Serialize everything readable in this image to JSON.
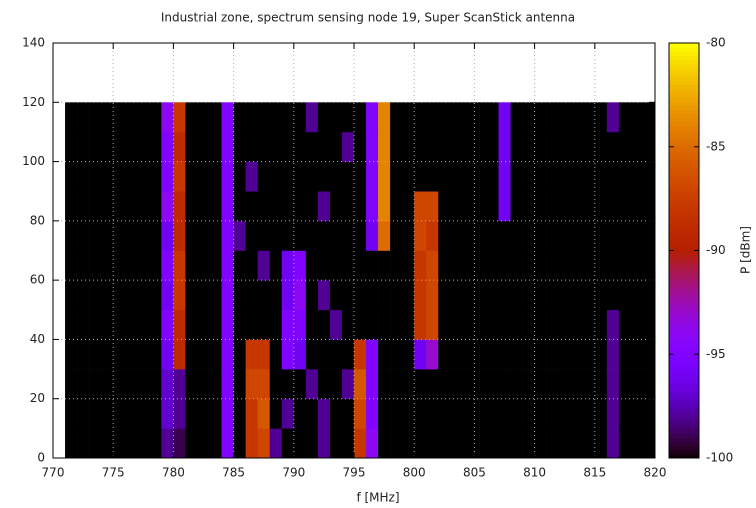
{
  "chart_data": {
    "type": "heatmap",
    "title": "Industrial zone, spectrum sensing node 19, Super ScanStick antenna",
    "xlabel": "f [MHz]",
    "colorbar_label": "P [dBm]",
    "xlim": [
      770,
      820
    ],
    "ylim": [
      0,
      140
    ],
    "cblim": [
      -100,
      -80
    ],
    "xticks": [
      770,
      775,
      780,
      785,
      790,
      795,
      800,
      805,
      810,
      815,
      820
    ],
    "yticks": [
      0,
      20,
      40,
      60,
      80,
      100,
      120,
      140
    ],
    "cbticks": [
      -100,
      -95,
      -90,
      -85,
      -80
    ],
    "grid": true,
    "x_bins": [
      770,
      771,
      772,
      773,
      774,
      775,
      776,
      777,
      778,
      779,
      780,
      781,
      782,
      783,
      784,
      785,
      786,
      787,
      788,
      789,
      790,
      791,
      792,
      793,
      794,
      795,
      796,
      797,
      798,
      799,
      800,
      801,
      802,
      803,
      804,
      805,
      806,
      807,
      808,
      809,
      810,
      811,
      812,
      813,
      814,
      815,
      816,
      817,
      818,
      819,
      820
    ],
    "y_bins": [
      0,
      10,
      20,
      30,
      40,
      50,
      60,
      70,
      80,
      90,
      100,
      110,
      120
    ],
    "z": [
      [
        null,
        -100,
        -100,
        -100,
        -100,
        -100,
        -100,
        -100,
        -100,
        -98,
        -99,
        -100,
        -100,
        -100,
        -95,
        -100,
        -88,
        -87,
        -98,
        -100,
        -100,
        -100,
        -98,
        -100,
        -100,
        -88,
        -94,
        -100,
        -100,
        -100,
        -100,
        -100,
        -100,
        -100,
        -100,
        -100,
        -100,
        -100,
        -100,
        -100,
        -100,
        -100,
        -100,
        -100,
        -100,
        -100,
        -98,
        -100,
        -100,
        -100
      ],
      [
        null,
        -100,
        -100,
        -100,
        -100,
        -100,
        -100,
        -100,
        -100,
        -97,
        -98,
        -100,
        -100,
        -100,
        -95,
        -100,
        -88,
        -86,
        -100,
        -98,
        -100,
        -100,
        -98,
        -100,
        -100,
        -87,
        -95,
        -100,
        -100,
        -100,
        -100,
        -100,
        -100,
        -100,
        -100,
        -100,
        -100,
        -100,
        -100,
        -100,
        -100,
        -100,
        -100,
        -100,
        -100,
        -100,
        -98,
        -100,
        -100,
        -100
      ],
      [
        null,
        -100,
        -100,
        -100,
        -100,
        -100,
        -100,
        -100,
        -100,
        -97,
        -98,
        -100,
        -100,
        -100,
        -95,
        -100,
        -87,
        -87,
        -100,
        -100,
        -100,
        -98,
        -100,
        -100,
        -98,
        -86,
        -95,
        -100,
        -100,
        -100,
        -100,
        -100,
        -100,
        -100,
        -100,
        -100,
        -100,
        -100,
        -100,
        -100,
        -100,
        -100,
        -100,
        -100,
        -100,
        -100,
        -98,
        -100,
        -100,
        -100
      ],
      [
        null,
        -100,
        -100,
        -100,
        -100,
        -100,
        -100,
        -100,
        -100,
        -96,
        -89,
        -100,
        -100,
        -100,
        -95,
        -100,
        -88,
        -88,
        -100,
        -95,
        -96,
        -100,
        -100,
        -100,
        -100,
        -88,
        -95,
        -100,
        -100,
        -100,
        -96,
        -93,
        -100,
        -100,
        -100,
        -100,
        -100,
        -100,
        -100,
        -100,
        -100,
        -100,
        -100,
        -100,
        -100,
        -100,
        -98,
        -100,
        -100,
        -100
      ],
      [
        null,
        -100,
        -100,
        -100,
        -100,
        -100,
        -100,
        -100,
        -100,
        -95,
        -89,
        -100,
        -100,
        -100,
        -95,
        -100,
        -100,
        -100,
        -100,
        -95,
        -95,
        -100,
        -100,
        -98,
        -100,
        -100,
        -100,
        -100,
        -100,
        -100,
        -88,
        -87,
        -100,
        -100,
        -100,
        -100,
        -100,
        -100,
        -100,
        -100,
        -100,
        -100,
        -100,
        -100,
        -100,
        -100,
        -98,
        -100,
        -100,
        -100
      ],
      [
        null,
        -100,
        -100,
        -100,
        -100,
        -100,
        -100,
        -100,
        -100,
        -96,
        -88,
        -100,
        -100,
        -100,
        -95,
        -100,
        -100,
        -100,
        -100,
        -96,
        -94,
        -100,
        -98,
        -100,
        -100,
        -100,
        -100,
        -100,
        -100,
        -100,
        -88,
        -87,
        -100,
        -100,
        -100,
        -100,
        -100,
        -100,
        -100,
        -100,
        -100,
        -100,
        -100,
        -100,
        -100,
        -100,
        -100,
        -100,
        -100,
        -100
      ],
      [
        null,
        -100,
        -100,
        -100,
        -100,
        -100,
        -100,
        -100,
        -100,
        -95,
        -88,
        -100,
        -100,
        -100,
        -95,
        -100,
        -100,
        -98,
        -100,
        -96,
        -95,
        -100,
        -100,
        -100,
        -100,
        -100,
        -100,
        -100,
        -100,
        -100,
        -88,
        -87,
        -100,
        -100,
        -100,
        -100,
        -100,
        -100,
        -100,
        -100,
        -100,
        -100,
        -100,
        -100,
        -100,
        -100,
        -100,
        -100,
        -100,
        -100
      ],
      [
        null,
        -100,
        -100,
        -100,
        -100,
        -100,
        -100,
        -100,
        -100,
        -96,
        -89,
        -100,
        -100,
        -100,
        -95,
        -98,
        -100,
        -100,
        -100,
        -100,
        -100,
        -100,
        -100,
        -100,
        -100,
        -100,
        -96,
        -85,
        -100,
        -100,
        -87,
        -88,
        -100,
        -100,
        -100,
        -100,
        -100,
        -100,
        -100,
        -100,
        -100,
        -100,
        -100,
        -100,
        -100,
        -100,
        -100,
        -100,
        -100,
        -100
      ],
      [
        null,
        -100,
        -100,
        -100,
        -100,
        -100,
        -100,
        -100,
        -100,
        -94,
        -89,
        -100,
        -100,
        -100,
        -95,
        -100,
        -100,
        -100,
        -100,
        -100,
        -100,
        -100,
        -98,
        -100,
        -100,
        -100,
        -95,
        -84,
        -100,
        -100,
        -87,
        -87,
        -100,
        -100,
        -100,
        -100,
        -100,
        -96,
        -100,
        -100,
        -100,
        -100,
        -100,
        -100,
        -100,
        -100,
        -100,
        -100,
        -100,
        -100
      ],
      [
        null,
        -100,
        -100,
        -100,
        -100,
        -100,
        -100,
        -100,
        -100,
        -95,
        -88,
        -100,
        -100,
        -100,
        -95,
        -100,
        -98,
        -100,
        -100,
        -100,
        -100,
        -100,
        -100,
        -100,
        -100,
        -100,
        -95,
        -84,
        -100,
        -100,
        -100,
        -100,
        -100,
        -100,
        -100,
        -100,
        -100,
        -96,
        -100,
        -100,
        -100,
        -100,
        -100,
        -100,
        -100,
        -100,
        -100,
        -100,
        -100,
        -100
      ],
      [
        null,
        -100,
        -100,
        -100,
        -100,
        -100,
        -100,
        -100,
        -100,
        -95,
        -89,
        -100,
        -100,
        -100,
        -95,
        -100,
        -100,
        -100,
        -100,
        -100,
        -100,
        -100,
        -100,
        -100,
        -98,
        -100,
        -95,
        -84,
        -100,
        -100,
        -100,
        -100,
        -100,
        -100,
        -100,
        -100,
        -100,
        -96,
        -100,
        -100,
        -100,
        -100,
        -100,
        -100,
        -100,
        -100,
        -100,
        -100,
        -100,
        -100
      ],
      [
        null,
        -100,
        -100,
        -100,
        -100,
        -100,
        -100,
        -100,
        -100,
        -94,
        -88,
        -100,
        -100,
        -100,
        -95,
        -100,
        -100,
        -100,
        -100,
        -100,
        -100,
        -98,
        -100,
        -100,
        -100,
        -100,
        -95,
        -84,
        -100,
        -100,
        -100,
        -100,
        -100,
        -100,
        -100,
        -100,
        -100,
        -96,
        -100,
        -100,
        -100,
        -100,
        -100,
        -100,
        -100,
        -100,
        -98,
        -100,
        -100,
        -100
      ]
    ]
  }
}
